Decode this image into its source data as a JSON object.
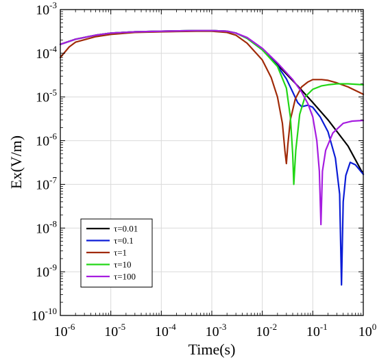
{
  "chart_data": {
    "type": "line",
    "title": "",
    "xlabel": "Time(s)",
    "ylabel": "Ex(V/m)",
    "xscale": "log",
    "yscale": "log",
    "xlim": [
      1e-06,
      1
    ],
    "ylim": [
      1e-10,
      0.001
    ],
    "grid": true,
    "legend_position": "bottom-left",
    "xticks": [
      {
        "base": "10",
        "exp": "-6"
      },
      {
        "base": "10",
        "exp": "-5"
      },
      {
        "base": "10",
        "exp": "-4"
      },
      {
        "base": "10",
        "exp": "-3"
      },
      {
        "base": "10",
        "exp": "-2"
      },
      {
        "base": "10",
        "exp": "-1"
      },
      {
        "base": "10",
        "exp": "0"
      }
    ],
    "yticks": [
      {
        "base": "10",
        "exp": "-10"
      },
      {
        "base": "10",
        "exp": "-9"
      },
      {
        "base": "10",
        "exp": "-8"
      },
      {
        "base": "10",
        "exp": "-7"
      },
      {
        "base": "10",
        "exp": "-6"
      },
      {
        "base": "10",
        "exp": "-5"
      },
      {
        "base": "10",
        "exp": "-4"
      },
      {
        "base": "10",
        "exp": "-3"
      }
    ],
    "series": [
      {
        "name": "τ=0.01",
        "color": "#000000",
        "x": [
          1e-06,
          2e-06,
          5e-06,
          1e-05,
          3e-05,
          0.0001,
          0.0005,
          0.001,
          0.002,
          0.003,
          0.005,
          0.01,
          0.02,
          0.05,
          0.1,
          0.2,
          0.5,
          1
        ],
        "y": [
          0.00016,
          0.00021,
          0.00026,
          0.00029,
          0.00031,
          0.00032,
          0.00033,
          0.00033,
          0.00032,
          0.00029,
          0.00022,
          0.00012,
          5.5e-05,
          1.8e-05,
          7.5e-06,
          3e-06,
          7.5e-07,
          1.7e-07
        ]
      },
      {
        "name": "τ=0.1",
        "color": "#0a1cd6",
        "x": [
          1e-06,
          2e-06,
          5e-06,
          1e-05,
          3e-05,
          0.0001,
          0.0005,
          0.001,
          0.002,
          0.003,
          0.005,
          0.01,
          0.02,
          0.03,
          0.04,
          0.05,
          0.06,
          0.08,
          0.1,
          0.14,
          0.2,
          0.28,
          0.34,
          0.37,
          0.4,
          0.45,
          0.55,
          0.7,
          1
        ],
        "y": [
          0.00016,
          0.00021,
          0.00026,
          0.00029,
          0.00031,
          0.00032,
          0.00033,
          0.00033,
          0.00032,
          0.00029,
          0.00022,
          0.00012,
          5.2e-05,
          2.6e-05,
          1.3e-05,
          7.5e-06,
          6e-06,
          6.5e-06,
          5.8e-06,
          3.5e-06,
          1.6e-06,
          4e-07,
          6e-08,
          5e-10,
          4e-08,
          1.6e-07,
          3.2e-07,
          2.8e-07,
          1.7e-07
        ]
      },
      {
        "name": "τ=1",
        "color": "#a02a08",
        "x": [
          1e-06,
          1.5e-06,
          2e-06,
          5e-06,
          1e-05,
          3e-05,
          0.0001,
          0.0005,
          0.001,
          0.002,
          0.003,
          0.005,
          0.01,
          0.015,
          0.02,
          0.025,
          0.028,
          0.03,
          0.032,
          0.036,
          0.045,
          0.06,
          0.08,
          0.1,
          0.15,
          0.2,
          0.3,
          0.5,
          1
        ],
        "y": [
          8e-05,
          0.00014,
          0.00018,
          0.00024,
          0.00027,
          0.0003,
          0.00031,
          0.00032,
          0.00032,
          0.0003,
          0.00026,
          0.00017,
          7e-05,
          2.8e-05,
          1e-05,
          2.5e-06,
          6e-07,
          3e-07,
          8e-07,
          3e-06,
          9e-06,
          1.7e-05,
          2.2e-05,
          2.5e-05,
          2.5e-05,
          2.4e-05,
          2.1e-05,
          1.7e-05,
          1.15e-05
        ]
      },
      {
        "name": "τ=10",
        "color": "#22d616",
        "x": [
          1e-06,
          2e-06,
          5e-06,
          1e-05,
          3e-05,
          0.0001,
          0.0005,
          0.001,
          0.002,
          0.003,
          0.005,
          0.01,
          0.02,
          0.03,
          0.036,
          0.04,
          0.042,
          0.046,
          0.055,
          0.07,
          0.1,
          0.15,
          0.2,
          0.3,
          0.5,
          1
        ],
        "y": [
          0.00016,
          0.00021,
          0.00026,
          0.00029,
          0.00031,
          0.00032,
          0.00033,
          0.00033,
          0.00032,
          0.00029,
          0.00022,
          0.00012,
          5e-05,
          1.6e-05,
          3.5e-06,
          5e-07,
          1e-07,
          6e-07,
          4e-06,
          1e-05,
          1.5e-05,
          1.8e-05,
          1.9e-05,
          2e-05,
          2e-05,
          1.9e-05
        ]
      },
      {
        "name": "τ=100",
        "color": "#a61ce0",
        "x": [
          1e-06,
          2e-06,
          5e-06,
          1e-05,
          3e-05,
          0.0001,
          0.0005,
          0.001,
          0.002,
          0.003,
          0.005,
          0.01,
          0.02,
          0.04,
          0.06,
          0.08,
          0.1,
          0.12,
          0.135,
          0.145,
          0.155,
          0.18,
          0.25,
          0.4,
          0.6,
          1
        ],
        "y": [
          0.00016,
          0.00021,
          0.00026,
          0.00029,
          0.00031,
          0.00032,
          0.00033,
          0.00033,
          0.00032,
          0.00029,
          0.00023,
          0.00013,
          6e-05,
          2.5e-05,
          1.3e-05,
          7e-06,
          3.5e-06,
          1e-06,
          2e-07,
          1.2e-08,
          2e-07,
          6e-07,
          1.5e-06,
          2.5e-06,
          2.8e-06,
          2.9e-06
        ]
      }
    ]
  }
}
